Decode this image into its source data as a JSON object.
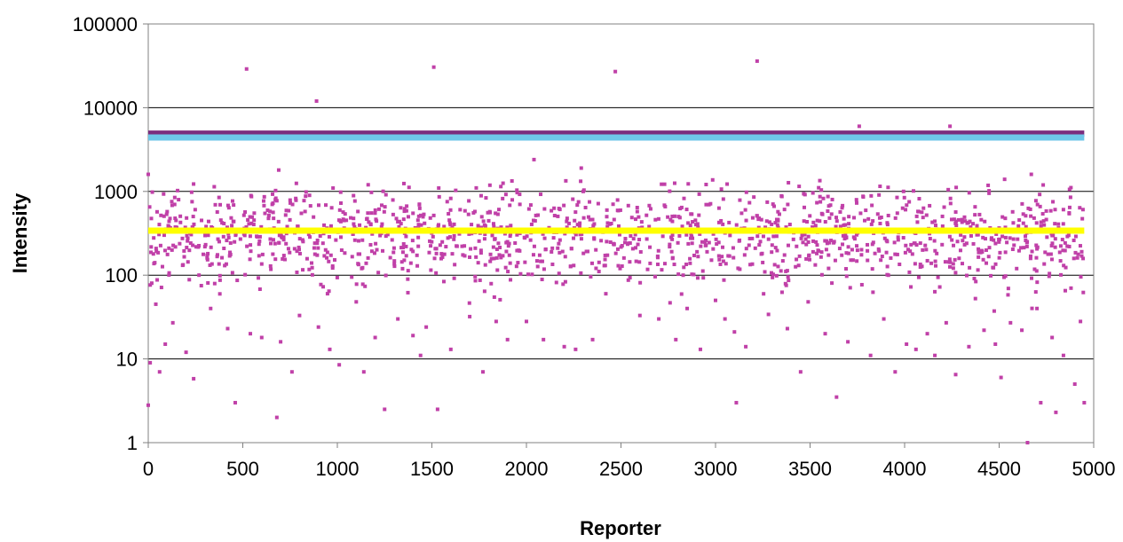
{
  "chart_data": {
    "type": "scatter",
    "title": "",
    "xlabel": "Reporter",
    "ylabel": "Intensity",
    "xlim": [
      0,
      5000
    ],
    "ylim": [
      1,
      100000
    ],
    "y_scale": "log",
    "grid": "horizontal",
    "x_ticks": [
      0,
      500,
      1000,
      1500,
      2000,
      2500,
      3000,
      3500,
      4000,
      4500,
      5000
    ],
    "y_ticks": [
      1,
      10,
      100,
      1000,
      10000,
      100000
    ],
    "x_tick_labels": [
      "0",
      "500",
      "1000",
      "1500",
      "2000",
      "2500",
      "3000",
      "3500",
      "4000",
      "4500",
      "5000"
    ],
    "y_tick_labels": [
      "1",
      "10",
      "100",
      "1000",
      "10000",
      "100000"
    ],
    "reference_lines": [
      {
        "value": 4900,
        "color": "#7b2c7d",
        "x_range": [
          0,
          4950
        ]
      },
      {
        "value": 4400,
        "color": "#6ec6e8",
        "x_range": [
          0,
          4950
        ]
      },
      {
        "value": 340,
        "color": "#ffff00",
        "x_range": [
          0,
          4950
        ]
      }
    ],
    "series": [
      {
        "color": "#c040a8",
        "points": [
          [
            520,
            29000
          ],
          [
            1510,
            30500
          ],
          [
            2470,
            27000
          ],
          [
            3220,
            36000
          ],
          [
            890,
            12000
          ],
          [
            3760,
            6000
          ],
          [
            4240,
            6000
          ],
          [
            2040,
            2400
          ],
          [
            690,
            1800
          ],
          [
            2290,
            1900
          ],
          [
            4670,
            1600
          ],
          [
            0,
            1600
          ],
          [
            10,
            9
          ],
          [
            0,
            2.8
          ],
          [
            60,
            7
          ],
          [
            240,
            5.8
          ],
          [
            460,
            3
          ],
          [
            680,
            2
          ],
          [
            760,
            7
          ],
          [
            1010,
            8.5
          ],
          [
            1140,
            7
          ],
          [
            1250,
            2.5
          ],
          [
            1440,
            11
          ],
          [
            1530,
            2.5
          ],
          [
            1770,
            7
          ],
          [
            3110,
            3
          ],
          [
            3450,
            7
          ],
          [
            3640,
            3.5
          ],
          [
            3950,
            7
          ],
          [
            4270,
            6.5
          ],
          [
            4510,
            6
          ],
          [
            4650,
            1
          ],
          [
            4720,
            3
          ],
          [
            4800,
            2.3
          ],
          [
            4900,
            5
          ],
          [
            4950,
            3
          ],
          [
            40,
            45
          ],
          [
            90,
            15
          ],
          [
            130,
            27
          ],
          [
            200,
            12
          ],
          [
            330,
            40
          ],
          [
            420,
            23
          ],
          [
            540,
            20
          ],
          [
            600,
            18
          ],
          [
            700,
            16
          ],
          [
            800,
            33
          ],
          [
            900,
            24
          ],
          [
            960,
            13
          ],
          [
            1100,
            48
          ],
          [
            1200,
            18
          ],
          [
            1320,
            30
          ],
          [
            1400,
            19
          ],
          [
            1470,
            24
          ],
          [
            1600,
            13
          ],
          [
            1700,
            32
          ],
          [
            1840,
            28
          ],
          [
            1900,
            17
          ],
          [
            2000,
            28
          ],
          [
            2090,
            17
          ],
          [
            2200,
            14
          ],
          [
            2260,
            13
          ],
          [
            2350,
            17
          ],
          [
            2420,
            60
          ],
          [
            2600,
            33
          ],
          [
            2700,
            30
          ],
          [
            2790,
            17
          ],
          [
            2850,
            40
          ],
          [
            2920,
            13
          ],
          [
            3000,
            50
          ],
          [
            3050,
            30
          ],
          [
            3100,
            21
          ],
          [
            3160,
            14
          ],
          [
            3280,
            34
          ],
          [
            3380,
            23
          ],
          [
            3490,
            48
          ],
          [
            3580,
            20
          ],
          [
            3700,
            16
          ],
          [
            3820,
            11
          ],
          [
            3890,
            30
          ],
          [
            4010,
            15
          ],
          [
            4060,
            13
          ],
          [
            4120,
            20
          ],
          [
            4160,
            11
          ],
          [
            4220,
            27
          ],
          [
            4340,
            14
          ],
          [
            4420,
            22
          ],
          [
            4480,
            15
          ],
          [
            4560,
            27
          ],
          [
            4620,
            22
          ],
          [
            4700,
            40
          ],
          [
            4780,
            18
          ],
          [
            4840,
            11
          ],
          [
            4880,
            70
          ],
          [
            4930,
            28
          ]
        ]
      }
    ]
  }
}
